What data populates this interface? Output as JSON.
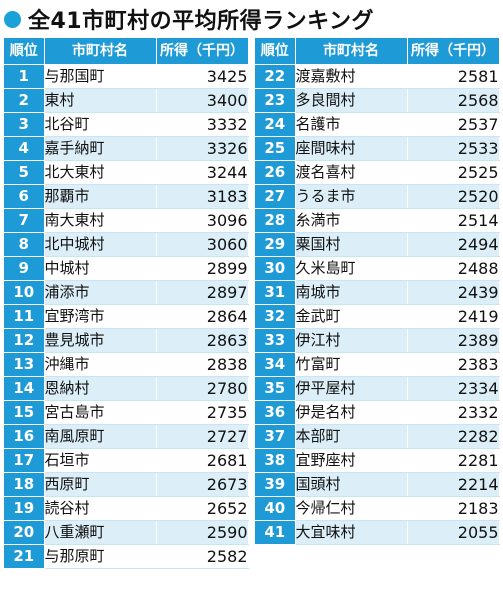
{
  "title": "全41市町村の平均所得ランキング",
  "headers": {
    "rank": "順位",
    "name": "市町村名",
    "income": "所得（千円）"
  },
  "left": [
    {
      "rank": "1",
      "name": "与那国町",
      "income": "3425"
    },
    {
      "rank": "2",
      "name": "東村",
      "income": "3400"
    },
    {
      "rank": "3",
      "name": "北谷町",
      "income": "3332"
    },
    {
      "rank": "4",
      "name": "嘉手納町",
      "income": "3326"
    },
    {
      "rank": "5",
      "name": "北大東村",
      "income": "3244"
    },
    {
      "rank": "6",
      "name": "那覇市",
      "income": "3183"
    },
    {
      "rank": "7",
      "name": "南大東村",
      "income": "3096"
    },
    {
      "rank": "8",
      "name": "北中城村",
      "income": "3060"
    },
    {
      "rank": "9",
      "name": "中城村",
      "income": "2899"
    },
    {
      "rank": "10",
      "name": "浦添市",
      "income": "2897"
    },
    {
      "rank": "11",
      "name": "宜野湾市",
      "income": "2864"
    },
    {
      "rank": "12",
      "name": "豊見城市",
      "income": "2863"
    },
    {
      "rank": "13",
      "name": "沖縄市",
      "income": "2838"
    },
    {
      "rank": "14",
      "name": "恩納村",
      "income": "2780"
    },
    {
      "rank": "15",
      "name": "宮古島市",
      "income": "2735"
    },
    {
      "rank": "16",
      "name": "南風原町",
      "income": "2727"
    },
    {
      "rank": "17",
      "name": "石垣市",
      "income": "2681"
    },
    {
      "rank": "18",
      "name": "西原町",
      "income": "2673"
    },
    {
      "rank": "19",
      "name": "読谷村",
      "income": "2652"
    },
    {
      "rank": "20",
      "name": "八重瀬町",
      "income": "2590"
    },
    {
      "rank": "21",
      "name": "与那原町",
      "income": "2582"
    }
  ],
  "right": [
    {
      "rank": "22",
      "name": "渡嘉敷村",
      "income": "2581"
    },
    {
      "rank": "23",
      "name": "多良間村",
      "income": "2568"
    },
    {
      "rank": "24",
      "name": "名護市",
      "income": "2537"
    },
    {
      "rank": "25",
      "name": "座間味村",
      "income": "2533"
    },
    {
      "rank": "26",
      "name": "渡名喜村",
      "income": "2525"
    },
    {
      "rank": "27",
      "name": "うるま市",
      "income": "2520"
    },
    {
      "rank": "28",
      "name": "糸満市",
      "income": "2514"
    },
    {
      "rank": "29",
      "name": "粟国村",
      "income": "2494"
    },
    {
      "rank": "30",
      "name": "久米島町",
      "income": "2488"
    },
    {
      "rank": "31",
      "name": "南城市",
      "income": "2439"
    },
    {
      "rank": "32",
      "name": "金武町",
      "income": "2419"
    },
    {
      "rank": "33",
      "name": "伊江村",
      "income": "2389"
    },
    {
      "rank": "34",
      "name": "竹富町",
      "income": "2383"
    },
    {
      "rank": "35",
      "name": "伊平屋村",
      "income": "2334"
    },
    {
      "rank": "36",
      "name": "伊是名村",
      "income": "2332"
    },
    {
      "rank": "37",
      "name": "本部町",
      "income": "2282"
    },
    {
      "rank": "38",
      "name": "宜野座村",
      "income": "2281"
    },
    {
      "rank": "39",
      "name": "国頭村",
      "income": "2214"
    },
    {
      "rank": "40",
      "name": "今帰仁村",
      "income": "2183"
    },
    {
      "rank": "41",
      "name": "大宜味村",
      "income": "2055"
    }
  ]
}
